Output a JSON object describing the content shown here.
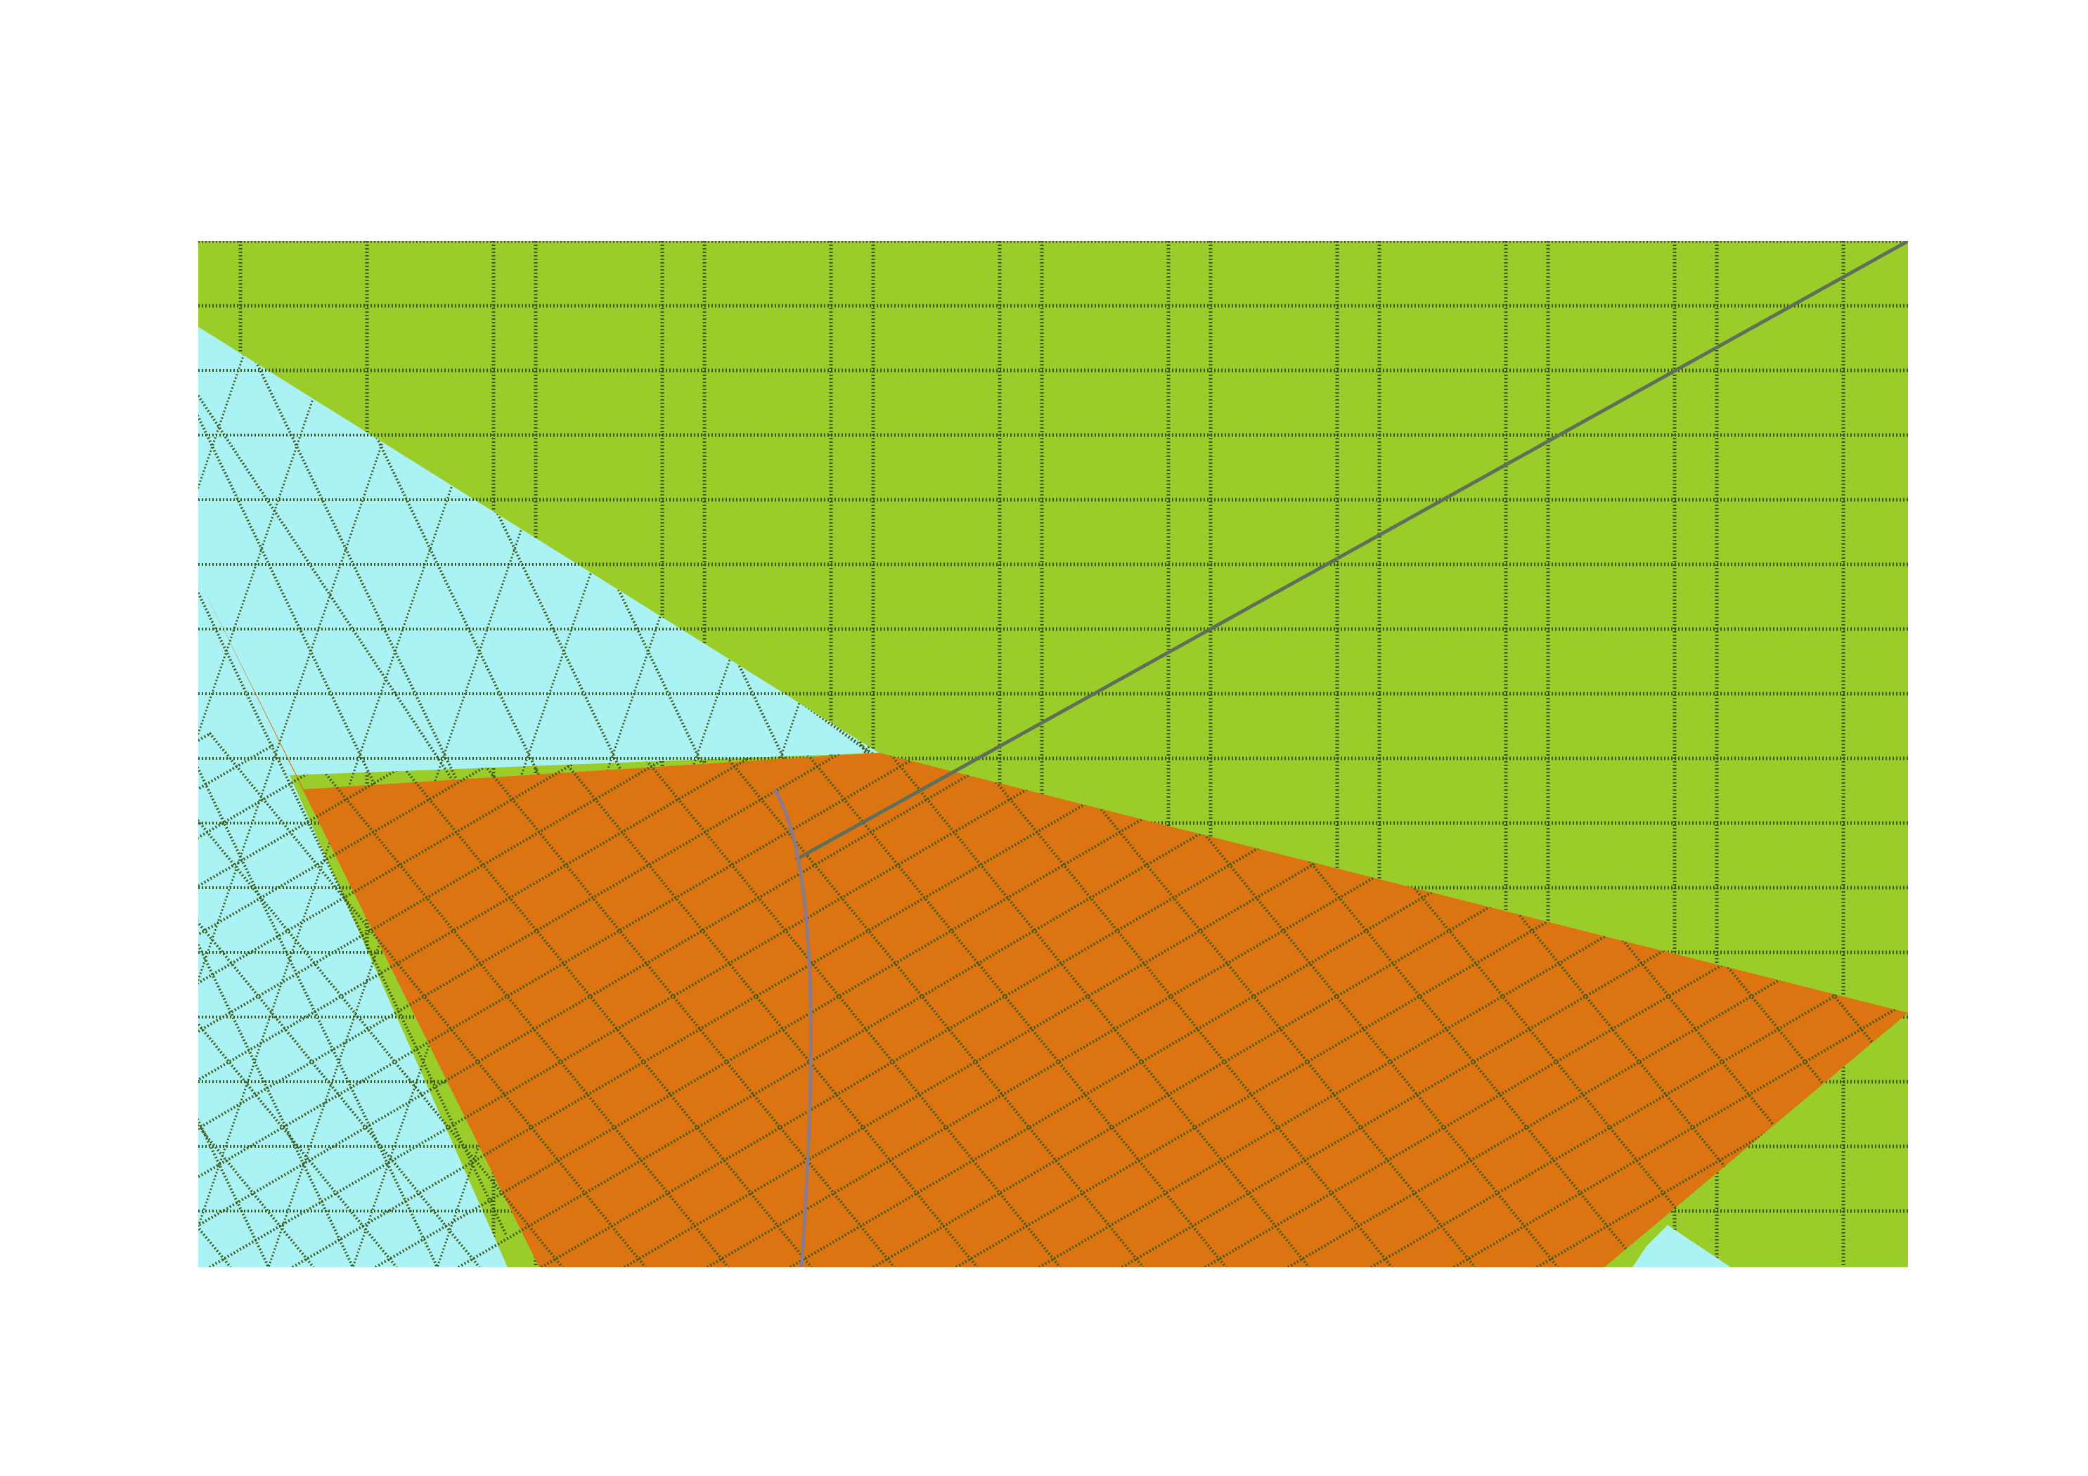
{
  "figure": {
    "kind": "tessellated surface diagram",
    "regions": [
      {
        "name": "grid-background",
        "color": "#9acd2a"
      },
      {
        "name": "light-blue-wedge",
        "color": "#aaf2f4"
      },
      {
        "name": "orange-quadrilateral",
        "color": "#dc7412"
      }
    ],
    "grid_line_color": "#3d5a1c",
    "diagonal_line_color": "#5f6f5a",
    "curve_line_color": "#8a7a8a",
    "labels": []
  }
}
